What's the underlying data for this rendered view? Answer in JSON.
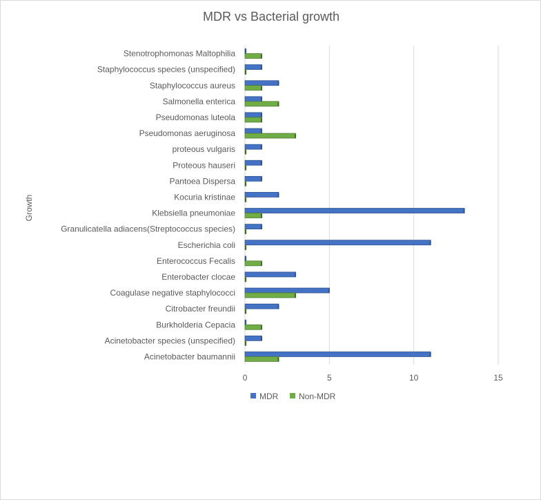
{
  "chart_data": {
    "type": "bar",
    "orientation": "horizontal",
    "title": "MDR vs Bacterial growth",
    "xlabel": "",
    "ylabel": "Growth",
    "xlim": [
      0,
      15
    ],
    "xticks": [
      "0",
      "5",
      "10",
      "15"
    ],
    "grid": true,
    "legend": "bottom",
    "categories": [
      "Acinetobacter baumannii",
      "Acinetobacter species (unspecified)",
      "Burkholderia Cepacia",
      "Citrobacter freundii",
      "Coagulase negative staphylococci",
      "Enterobacter clocae",
      "Enterococcus Fecalis",
      "Escherichia coli",
      "Granulicatella adiacens(Streptococcus species)",
      "Klebsiella pneumoniae",
      "Kocuria kristinae",
      "Pantoea Dispersa",
      "Proteous hauseri",
      "proteous vulgaris",
      "Pseudomonas aeruginosa",
      "Pseudomonas luteola",
      "Salmonella enterica",
      "Staphylococcus aureus",
      "Staphylococcus species (unspecified)",
      "Stenotrophomonas Maltophilia"
    ],
    "series": [
      {
        "name": "MDR",
        "color": "#4472C4",
        "values": [
          11,
          1,
          0,
          2,
          5,
          3,
          0,
          11,
          1,
          13,
          2,
          1,
          1,
          1,
          1,
          1,
          1,
          2,
          1,
          0
        ]
      },
      {
        "name": "Non-MDR",
        "color": "#70AD47",
        "values": [
          2,
          0,
          1,
          0,
          3,
          0,
          1,
          0,
          0,
          1,
          0,
          0,
          0,
          0,
          3,
          1,
          2,
          1,
          0,
          1
        ]
      }
    ]
  }
}
